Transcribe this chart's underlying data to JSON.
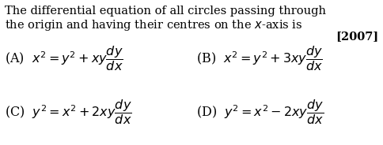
{
  "background_color": "#ffffff",
  "title_line1": "The differential equation of all circles passing through",
  "title_line2": "the origin and having their centres on the $x$-axis is",
  "year_tag": "[2007]",
  "option_A": "(A)  $x^2 = y^2 + xy\\dfrac{dy}{dx}$",
  "option_B": "(B)  $x^2 = y^2 + 3xy\\dfrac{dy}{dx}$",
  "option_C": "(C)  $y^2 = x^2 + 2xy\\dfrac{dy}{dx}$",
  "option_D": "(D)  $y^2 = x^2 - 2xy\\dfrac{dy}{dx}$",
  "text_color": "#000000",
  "title_fontsize": 10.5,
  "option_fontsize": 11.5,
  "year_fontsize": 10.5
}
